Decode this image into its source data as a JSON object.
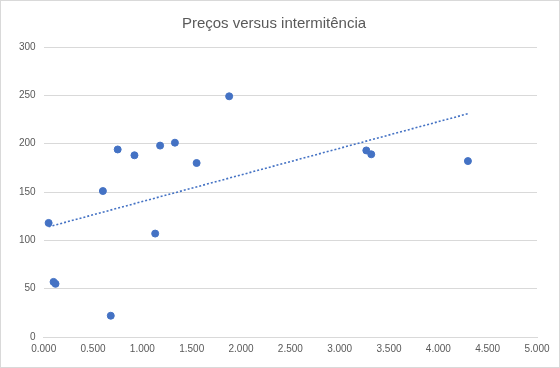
{
  "chart_data": {
    "type": "scatter",
    "title": "Preços versus intermitência",
    "x": [
      0.05,
      0.1,
      0.12,
      0.6,
      0.68,
      0.75,
      0.92,
      1.13,
      1.18,
      1.33,
      1.55,
      1.88,
      3.27,
      3.32,
      4.3
    ],
    "values": [
      118,
      57,
      55,
      151,
      22,
      194,
      188,
      107,
      198,
      201,
      180,
      249,
      193,
      189,
      182
    ],
    "color": "#4472c4",
    "marker": "circle",
    "trendline": {
      "x": [
        0.05,
        4.3
      ],
      "values": [
        114,
        231
      ],
      "color": "#4472c4",
      "line_style": "dotted"
    },
    "xlim": [
      0,
      5
    ],
    "xticks": [
      {
        "value": 0,
        "label": "0.000"
      },
      {
        "value": 0.5,
        "label": "0.500"
      },
      {
        "value": 1,
        "label": "1.000"
      },
      {
        "value": 1.5,
        "label": "1.500"
      },
      {
        "value": 2,
        "label": "2.000"
      },
      {
        "value": 2.5,
        "label": "2.500"
      },
      {
        "value": 3,
        "label": "3.000"
      },
      {
        "value": 3.5,
        "label": "3.500"
      },
      {
        "value": 4,
        "label": "4.000"
      },
      {
        "value": 4.5,
        "label": "4.500"
      },
      {
        "value": 5,
        "label": "5.000"
      }
    ],
    "ylim": [
      0,
      300
    ],
    "yticks": [
      0,
      50,
      100,
      150,
      200,
      250,
      300
    ],
    "grid": true
  }
}
